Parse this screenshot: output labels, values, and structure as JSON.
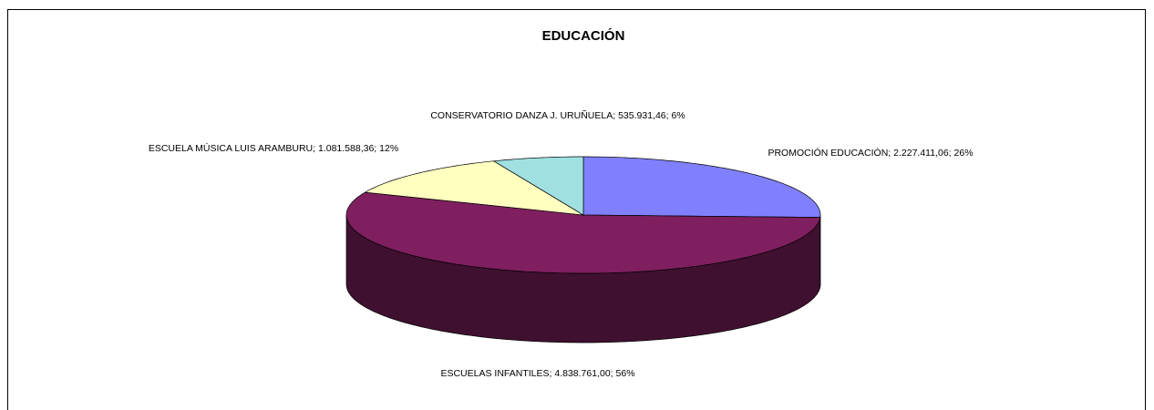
{
  "chart_data": {
    "type": "pie3d",
    "title": "EDUCACIÓN",
    "categories": [
      "PROMOCIÓN EDUCACIÓN",
      "ESCUELAS INFANTILES",
      "ESCUELA MÚSICA LUIS ARAMBURU",
      "CONSERVATORIO DANZA J. URUÑUELA"
    ],
    "values": [
      2227411.06,
      4838761.0,
      1081588.36,
      535931.46
    ],
    "value_labels": [
      "2.227.411,06",
      "4.838.761,00",
      "1.081.588,36",
      "535.931,46"
    ],
    "percents": [
      26,
      56,
      12,
      6
    ],
    "percent_labels": [
      "26%",
      "56%",
      "12%",
      "6%"
    ],
    "label_separator": "; ",
    "colors": [
      "#8080ff",
      "#7f1f5f",
      "#ffffc0",
      "#a0e0e0"
    ],
    "side_colors": [
      "#40407f",
      "#401030",
      "#80805f",
      "#507070"
    ]
  }
}
